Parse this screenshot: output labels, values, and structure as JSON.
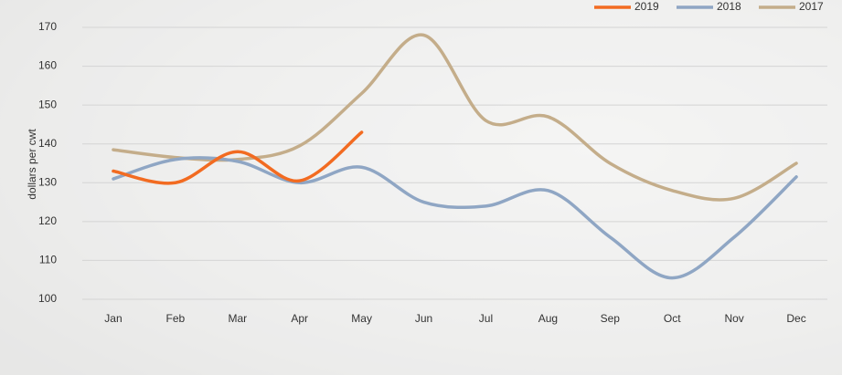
{
  "chart_data": {
    "type": "line",
    "y_label": "dollars per cwt",
    "categories": [
      "Jan",
      "Feb",
      "Mar",
      "Apr",
      "May",
      "Jun",
      "Jul",
      "Aug",
      "Sep",
      "Oct",
      "Nov",
      "Dec"
    ],
    "series": [
      {
        "name": "2019",
        "color": "#f26b21",
        "values": [
          133,
          130,
          138,
          130.5,
          143,
          null,
          null,
          null,
          null,
          null,
          null,
          null
        ]
      },
      {
        "name": "2018",
        "color": "#8fa6c4",
        "values": [
          131,
          136,
          135.5,
          130,
          134,
          125,
          124,
          128,
          116,
          105.5,
          116,
          131.5
        ]
      },
      {
        "name": "2017",
        "color": "#c4ad8a",
        "values": [
          138.5,
          136.5,
          136,
          139.5,
          153,
          168,
          146,
          147,
          135,
          128,
          126,
          135
        ]
      }
    ],
    "ylim": [
      100,
      170
    ],
    "yticks": [
      100,
      110,
      120,
      130,
      140,
      150,
      160,
      170
    ],
    "grid": true
  }
}
